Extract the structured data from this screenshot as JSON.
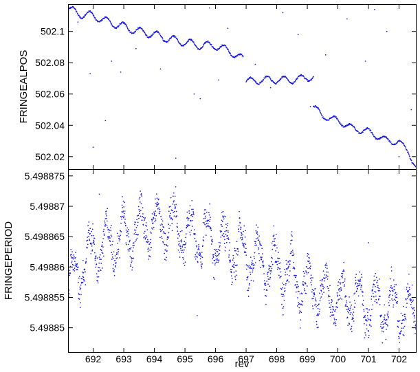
{
  "chart_data": {
    "type": "scatter",
    "grid": false,
    "marker_color": "#1515e6",
    "xlabel": "rev",
    "xlim": [
      691.2,
      702.55
    ],
    "xticks": [
      692,
      693,
      694,
      695,
      696,
      697,
      698,
      699,
      700,
      701,
      702
    ],
    "panels": [
      {
        "ylabel": "FRINGEALPOS",
        "ylim": [
          502.012,
          502.117
        ],
        "yticks": [
          {
            "value": 502.1,
            "label": "502.1"
          },
          {
            "value": 502.08,
            "label": "502.08"
          },
          {
            "value": 502.06,
            "label": "502.06"
          },
          {
            "value": 502.04,
            "label": "502.04"
          },
          {
            "value": 502.02,
            "label": "502.02"
          }
        ],
        "segments": [
          {
            "x": [
              691.2,
              691.6,
              692.0,
              692.5,
              693.0,
              693.5,
              694.0,
              694.5,
              695.0,
              695.5,
              696.0,
              696.5,
              696.9
            ],
            "y": [
              502.114,
              502.111,
              502.11,
              502.106,
              502.103,
              502.1,
              502.098,
              502.095,
              502.093,
              502.091,
              502.091,
              502.087,
              502.082
            ],
            "amplitude": 0.0025,
            "period": 0.55
          },
          {
            "x": [
              697.0,
              697.5,
              698.0,
              698.5,
              699.2
            ],
            "y": [
              502.068,
              502.069,
              502.069,
              502.069,
              502.071
            ],
            "amplitude": 0.0022,
            "period": 0.55
          },
          {
            "x": [
              699.2,
              699.5,
              700.0,
              700.5,
              701.0,
              701.5,
              702.0,
              702.3,
              702.55
            ],
            "y": [
              502.052,
              502.046,
              502.043,
              502.038,
              502.036,
              502.031,
              502.029,
              502.024,
              502.012
            ],
            "amplitude": 0.002,
            "period": 0.55
          }
        ],
        "outliers": [
          {
            "x": 691.5,
            "y": 502.106
          },
          {
            "x": 691.9,
            "y": 502.073
          },
          {
            "x": 692.0,
            "y": 502.026
          },
          {
            "x": 692.4,
            "y": 502.043
          },
          {
            "x": 692.6,
            "y": 502.081
          },
          {
            "x": 692.9,
            "y": 502.074
          },
          {
            "x": 693.4,
            "y": 502.089
          },
          {
            "x": 694.2,
            "y": 502.076
          },
          {
            "x": 694.7,
            "y": 502.019
          },
          {
            "x": 695.2,
            "y": 502.095
          },
          {
            "x": 695.3,
            "y": 502.06
          },
          {
            "x": 695.5,
            "y": 502.057
          },
          {
            "x": 695.8,
            "y": 502.115
          },
          {
            "x": 696.1,
            "y": 502.069
          },
          {
            "x": 696.4,
            "y": 502.102
          },
          {
            "x": 697.3,
            "y": 502.079
          },
          {
            "x": 697.8,
            "y": 502.064
          },
          {
            "x": 698.2,
            "y": 502.112
          },
          {
            "x": 698.7,
            "y": 502.098
          },
          {
            "x": 699.1,
            "y": 502.052
          },
          {
            "x": 699.6,
            "y": 502.085
          },
          {
            "x": 700.3,
            "y": 502.108
          },
          {
            "x": 700.9,
            "y": 502.081
          },
          {
            "x": 701.2,
            "y": 502.114
          },
          {
            "x": 701.6,
            "y": 502.1
          },
          {
            "x": 702.0,
            "y": 502.02
          },
          {
            "x": 702.4,
            "y": 502.05
          }
        ]
      },
      {
        "ylabel": "FRINGEPERIOD",
        "ylim": [
          5.498846,
          5.498876
        ],
        "yticks": [
          {
            "value": 5.498875,
            "label": "5.498875"
          },
          {
            "value": 5.49887,
            "label": "5.49887"
          },
          {
            "value": 5.498865,
            "label": "5.498865"
          },
          {
            "value": 5.49886,
            "label": "5.49886"
          },
          {
            "value": 5.498855,
            "label": "5.498855"
          },
          {
            "value": 5.49885,
            "label": "5.49885"
          }
        ],
        "trend_x": [
          691.2,
          692.0,
          693.0,
          694.0,
          695.0,
          696.0,
          697.0,
          698.0,
          699.0,
          700.0,
          701.0,
          702.0,
          702.55
        ],
        "trend_y": [
          5.498857,
          5.498863,
          5.498865,
          5.498867,
          5.498866,
          5.498864,
          5.498862,
          5.49886,
          5.498857,
          5.498855,
          5.498854,
          5.498853,
          5.498853
        ],
        "amplitude": 3.5e-06,
        "period": 0.55,
        "outliers": [
          {
            "x": 692.2,
            "y": 5.498872
          },
          {
            "x": 695.4,
            "y": 5.498852
          },
          {
            "x": 701.0,
            "y": 5.498864
          }
        ]
      }
    ]
  }
}
